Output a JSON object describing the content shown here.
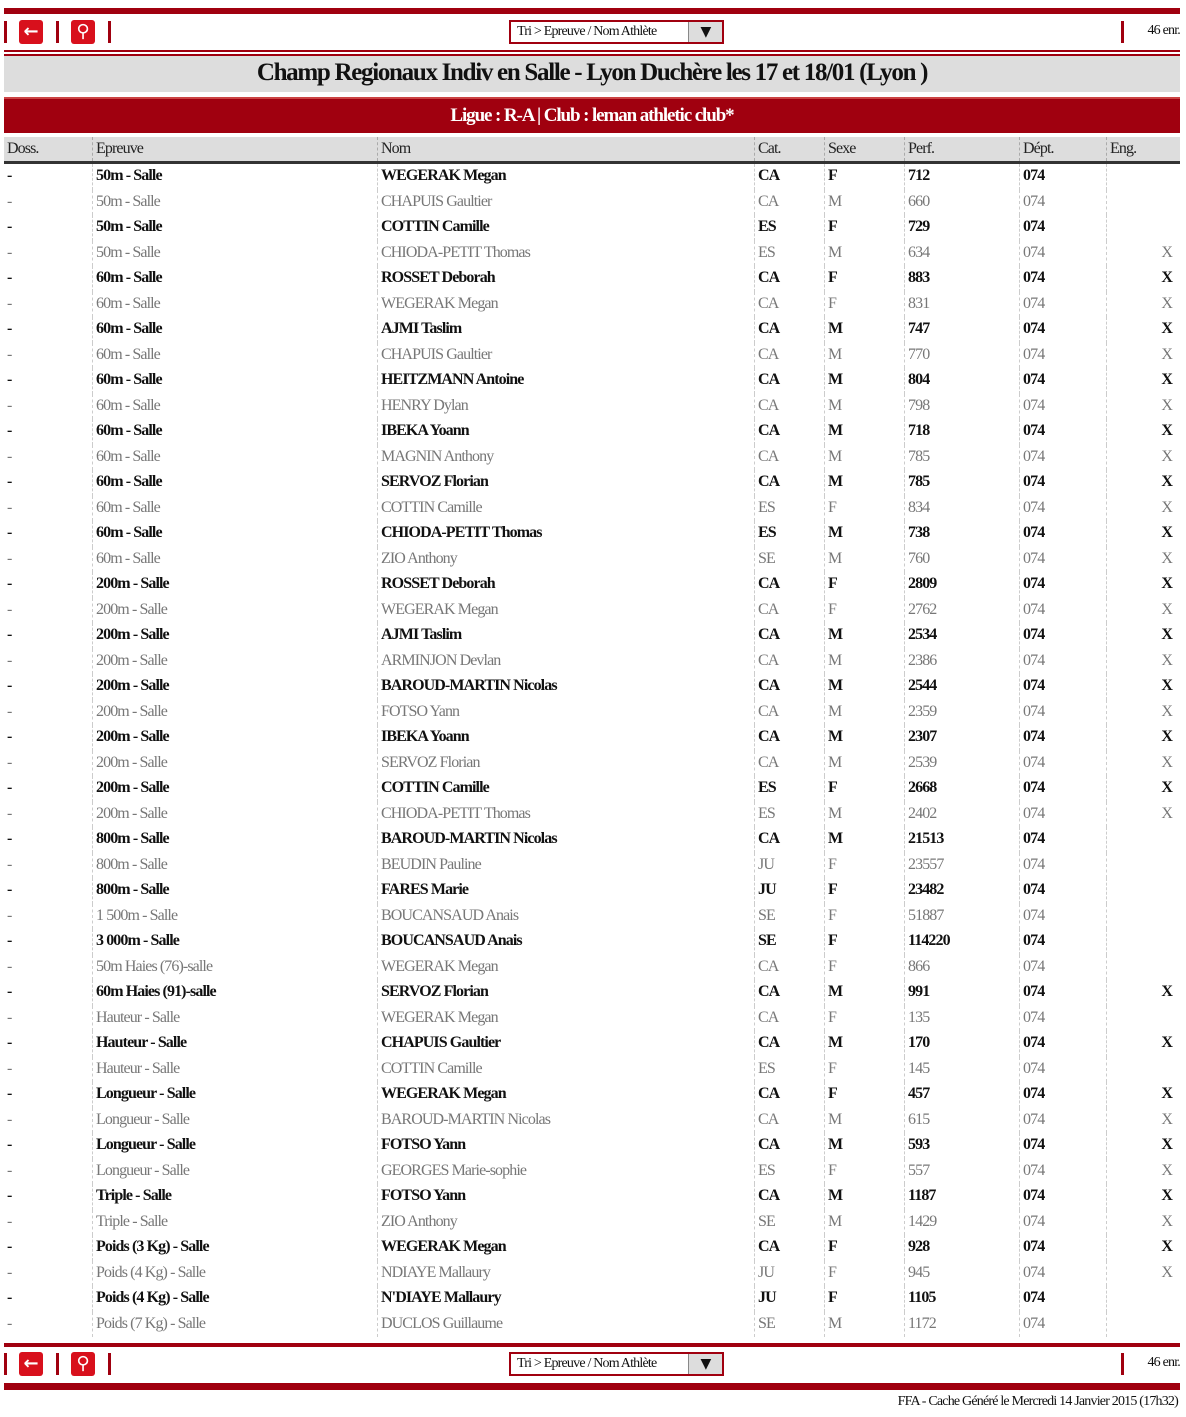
{
  "toolbar": {
    "back_icon": "arrow-left-icon",
    "search_icon": "magnifier-icon",
    "sort_value": "Tri > Epreuve / Nom Athlète",
    "count": "46 enr."
  },
  "title": "Champ Regionaux Indiv en Salle - Lyon Duchère les 17 et 18/01 (Lyon )",
  "subtitle": "Ligue : R-A | Club : leman athletic club*",
  "colors": {
    "accent": "#a0000f",
    "header_bg": "#dddddd"
  },
  "columns": [
    "Doss.",
    "Epreuve",
    "Nom",
    "Cat.",
    "Sexe",
    "Perf.",
    "Dépt.",
    "Eng."
  ],
  "rows": [
    [
      "-",
      "50m - Salle",
      "WEGERAK Megan",
      "CA",
      "F",
      "712",
      "074",
      ""
    ],
    [
      "-",
      "50m - Salle",
      "CHAPUIS Gaultier",
      "CA",
      "M",
      "660",
      "074",
      ""
    ],
    [
      "-",
      "50m - Salle",
      "COTTIN Camille",
      "ES",
      "F",
      "729",
      "074",
      ""
    ],
    [
      "-",
      "50m - Salle",
      "CHIODA-PETIT Thomas",
      "ES",
      "M",
      "634",
      "074",
      "X"
    ],
    [
      "-",
      "60m - Salle",
      "ROSSET Deborah",
      "CA",
      "F",
      "883",
      "074",
      "X"
    ],
    [
      "-",
      "60m - Salle",
      "WEGERAK Megan",
      "CA",
      "F",
      "831",
      "074",
      "X"
    ],
    [
      "-",
      "60m - Salle",
      "AJMI Taslim",
      "CA",
      "M",
      "747",
      "074",
      "X"
    ],
    [
      "-",
      "60m - Salle",
      "CHAPUIS Gaultier",
      "CA",
      "M",
      "770",
      "074",
      "X"
    ],
    [
      "-",
      "60m - Salle",
      "HEITZMANN Antoine",
      "CA",
      "M",
      "804",
      "074",
      "X"
    ],
    [
      "-",
      "60m - Salle",
      "HENRY Dylan",
      "CA",
      "M",
      "798",
      "074",
      "X"
    ],
    [
      "-",
      "60m - Salle",
      "IBEKA Yoann",
      "CA",
      "M",
      "718",
      "074",
      "X"
    ],
    [
      "-",
      "60m - Salle",
      "MAGNIN Anthony",
      "CA",
      "M",
      "785",
      "074",
      "X"
    ],
    [
      "-",
      "60m - Salle",
      "SERVOZ Florian",
      "CA",
      "M",
      "785",
      "074",
      "X"
    ],
    [
      "-",
      "60m - Salle",
      "COTTIN Camille",
      "ES",
      "F",
      "834",
      "074",
      "X"
    ],
    [
      "-",
      "60m - Salle",
      "CHIODA-PETIT Thomas",
      "ES",
      "M",
      "738",
      "074",
      "X"
    ],
    [
      "-",
      "60m - Salle",
      "ZIO Anthony",
      "SE",
      "M",
      "760",
      "074",
      "X"
    ],
    [
      "-",
      "200m - Salle",
      "ROSSET Deborah",
      "CA",
      "F",
      "2809",
      "074",
      "X"
    ],
    [
      "-",
      "200m - Salle",
      "WEGERAK Megan",
      "CA",
      "F",
      "2762",
      "074",
      "X"
    ],
    [
      "-",
      "200m - Salle",
      "AJMI Taslim",
      "CA",
      "M",
      "2534",
      "074",
      "X"
    ],
    [
      "-",
      "200m - Salle",
      "ARMINJON Devlan",
      "CA",
      "M",
      "2386",
      "074",
      "X"
    ],
    [
      "-",
      "200m - Salle",
      "BAROUD-MARTIN Nicolas",
      "CA",
      "M",
      "2544",
      "074",
      "X"
    ],
    [
      "-",
      "200m - Salle",
      "FOTSO Yann",
      "CA",
      "M",
      "2359",
      "074",
      "X"
    ],
    [
      "-",
      "200m - Salle",
      "IBEKA Yoann",
      "CA",
      "M",
      "2307",
      "074",
      "X"
    ],
    [
      "-",
      "200m - Salle",
      "SERVOZ Florian",
      "CA",
      "M",
      "2539",
      "074",
      "X"
    ],
    [
      "-",
      "200m - Salle",
      "COTTIN Camille",
      "ES",
      "F",
      "2668",
      "074",
      "X"
    ],
    [
      "-",
      "200m - Salle",
      "CHIODA-PETIT Thomas",
      "ES",
      "M",
      "2402",
      "074",
      "X"
    ],
    [
      "-",
      "800m - Salle",
      "BAROUD-MARTIN Nicolas",
      "CA",
      "M",
      "21513",
      "074",
      ""
    ],
    [
      "-",
      "800m - Salle",
      "BEUDIN Pauline",
      "JU",
      "F",
      "23557",
      "074",
      ""
    ],
    [
      "-",
      "800m - Salle",
      "FARES Marie",
      "JU",
      "F",
      "23482",
      "074",
      ""
    ],
    [
      "-",
      "1 500m - Salle",
      "BOUCANSAUD Anais",
      "SE",
      "F",
      "51887",
      "074",
      ""
    ],
    [
      "-",
      "3 000m - Salle",
      "BOUCANSAUD Anais",
      "SE",
      "F",
      "114220",
      "074",
      ""
    ],
    [
      "-",
      "50m Haies (76)-salle",
      "WEGERAK Megan",
      "CA",
      "F",
      "866",
      "074",
      ""
    ],
    [
      "-",
      "60m Haies (91)-salle",
      "SERVOZ Florian",
      "CA",
      "M",
      "991",
      "074",
      "X"
    ],
    [
      "-",
      "Hauteur - Salle",
      "WEGERAK Megan",
      "CA",
      "F",
      "135",
      "074",
      ""
    ],
    [
      "-",
      "Hauteur - Salle",
      "CHAPUIS Gaultier",
      "CA",
      "M",
      "170",
      "074",
      "X"
    ],
    [
      "-",
      "Hauteur - Salle",
      "COTTIN Camille",
      "ES",
      "F",
      "145",
      "074",
      ""
    ],
    [
      "-",
      "Longueur - Salle",
      "WEGERAK Megan",
      "CA",
      "F",
      "457",
      "074",
      "X"
    ],
    [
      "-",
      "Longueur - Salle",
      "BAROUD-MARTIN Nicolas",
      "CA",
      "M",
      "615",
      "074",
      "X"
    ],
    [
      "-",
      "Longueur - Salle",
      "FOTSO Yann",
      "CA",
      "M",
      "593",
      "074",
      "X"
    ],
    [
      "-",
      "Longueur - Salle",
      "GEORGES Marie-sophie",
      "ES",
      "F",
      "557",
      "074",
      "X"
    ],
    [
      "-",
      "Triple - Salle",
      "FOTSO Yann",
      "CA",
      "M",
      "1187",
      "074",
      "X"
    ],
    [
      "-",
      "Triple - Salle",
      "ZIO Anthony",
      "SE",
      "M",
      "1429",
      "074",
      "X"
    ],
    [
      "-",
      "Poids (3 Kg) - Salle",
      "WEGERAK Megan",
      "CA",
      "F",
      "928",
      "074",
      "X"
    ],
    [
      "-",
      "Poids (4 Kg) - Salle",
      "NDIAYE Mallaury",
      "JU",
      "F",
      "945",
      "074",
      "X"
    ],
    [
      "-",
      "Poids (4 Kg) - Salle",
      "N'DIAYE Mallaury",
      "JU",
      "F",
      "1105",
      "074",
      ""
    ],
    [
      "-",
      "Poids (7 Kg) - Salle",
      "DUCLOS Guillaume",
      "SE",
      "M",
      "1172",
      "074",
      ""
    ]
  ],
  "footer": "FFA - Cache Généré le Mercredi 14 Janvier 2015 (17h32)"
}
